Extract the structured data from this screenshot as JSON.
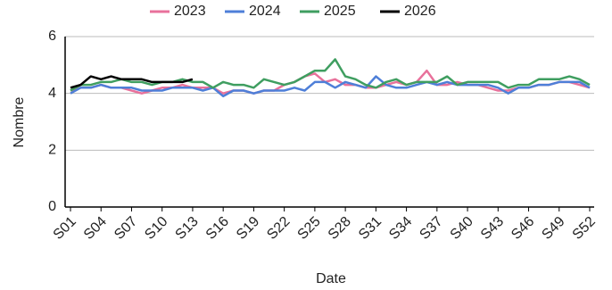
{
  "chart_data": {
    "type": "line",
    "xlabel": "Date",
    "ylabel": "Nombre",
    "categories": [
      "S01",
      null,
      null,
      "S04",
      null,
      null,
      "S07",
      null,
      null,
      "S10",
      null,
      null,
      "S13",
      null,
      null,
      "S16",
      null,
      null,
      "S19",
      null,
      null,
      "S22",
      null,
      null,
      "S25",
      null,
      null,
      "S28",
      null,
      null,
      "S31",
      null,
      null,
      "S34",
      null,
      null,
      "S37",
      null,
      null,
      "S40",
      null,
      null,
      "S43",
      null,
      null,
      "S46",
      null,
      null,
      "S49",
      null,
      null,
      "S52"
    ],
    "series": [
      {
        "name": "2023",
        "color": "#e8719b",
        "values": [
          4.1,
          4.2,
          4.2,
          4.3,
          4.2,
          4.2,
          4.1,
          4.0,
          4.1,
          4.2,
          4.2,
          4.3,
          4.2,
          4.2,
          4.2,
          4.0,
          4.1,
          4.1,
          4.0,
          4.1,
          4.1,
          4.3,
          4.4,
          4.6,
          4.7,
          4.4,
          4.5,
          4.3,
          4.3,
          4.2,
          4.2,
          4.3,
          4.4,
          4.3,
          4.4,
          4.8,
          4.3,
          4.3,
          4.4,
          4.3,
          4.3,
          4.2,
          4.1,
          4.1,
          4.2,
          4.2,
          4.3,
          4.3,
          4.4,
          4.4,
          4.3,
          4.2
        ]
      },
      {
        "name": "2024",
        "color": "#4e7fd8",
        "values": [
          4.0,
          4.2,
          4.2,
          4.3,
          4.2,
          4.2,
          4.2,
          4.1,
          4.1,
          4.1,
          4.2,
          4.2,
          4.2,
          4.1,
          4.2,
          3.9,
          4.1,
          4.1,
          4.0,
          4.1,
          4.1,
          4.1,
          4.2,
          4.1,
          4.4,
          4.4,
          4.2,
          4.4,
          4.3,
          4.2,
          4.6,
          4.3,
          4.2,
          4.2,
          4.3,
          4.4,
          4.3,
          4.4,
          4.3,
          4.3,
          4.3,
          4.3,
          4.2,
          4.0,
          4.2,
          4.2,
          4.3,
          4.3,
          4.4,
          4.4,
          4.4,
          4.2
        ]
      },
      {
        "name": "2025",
        "color": "#3f9e60",
        "values": [
          4.1,
          4.3,
          4.3,
          4.4,
          4.4,
          4.5,
          4.4,
          4.4,
          4.3,
          4.4,
          4.4,
          4.5,
          4.4,
          4.4,
          4.2,
          4.4,
          4.3,
          4.3,
          4.2,
          4.5,
          4.4,
          4.3,
          4.4,
          4.6,
          4.8,
          4.8,
          5.2,
          4.6,
          4.5,
          4.3,
          4.2,
          4.4,
          4.5,
          4.3,
          4.4,
          4.4,
          4.4,
          4.6,
          4.3,
          4.4,
          4.4,
          4.4,
          4.4,
          4.2,
          4.3,
          4.3,
          4.5,
          4.5,
          4.5,
          4.6,
          4.5,
          4.3
        ]
      },
      {
        "name": "2026",
        "color": "#000000",
        "values": [
          4.2,
          4.3,
          4.6,
          4.5,
          4.6,
          4.5,
          4.5,
          4.5,
          4.4,
          4.4,
          4.4,
          4.4,
          4.5,
          null,
          null,
          null,
          null,
          null,
          null,
          null,
          null,
          null,
          null,
          null,
          null,
          null,
          null,
          null,
          null,
          null,
          null,
          null,
          null,
          null,
          null,
          null,
          null,
          null,
          null,
          null,
          null,
          null,
          null,
          null,
          null,
          null,
          null,
          null,
          null,
          null,
          null,
          null
        ]
      }
    ],
    "ylim": [
      0,
      6
    ],
    "yticks": [
      0,
      2,
      4,
      6
    ],
    "grid": true,
    "legend": "top"
  }
}
